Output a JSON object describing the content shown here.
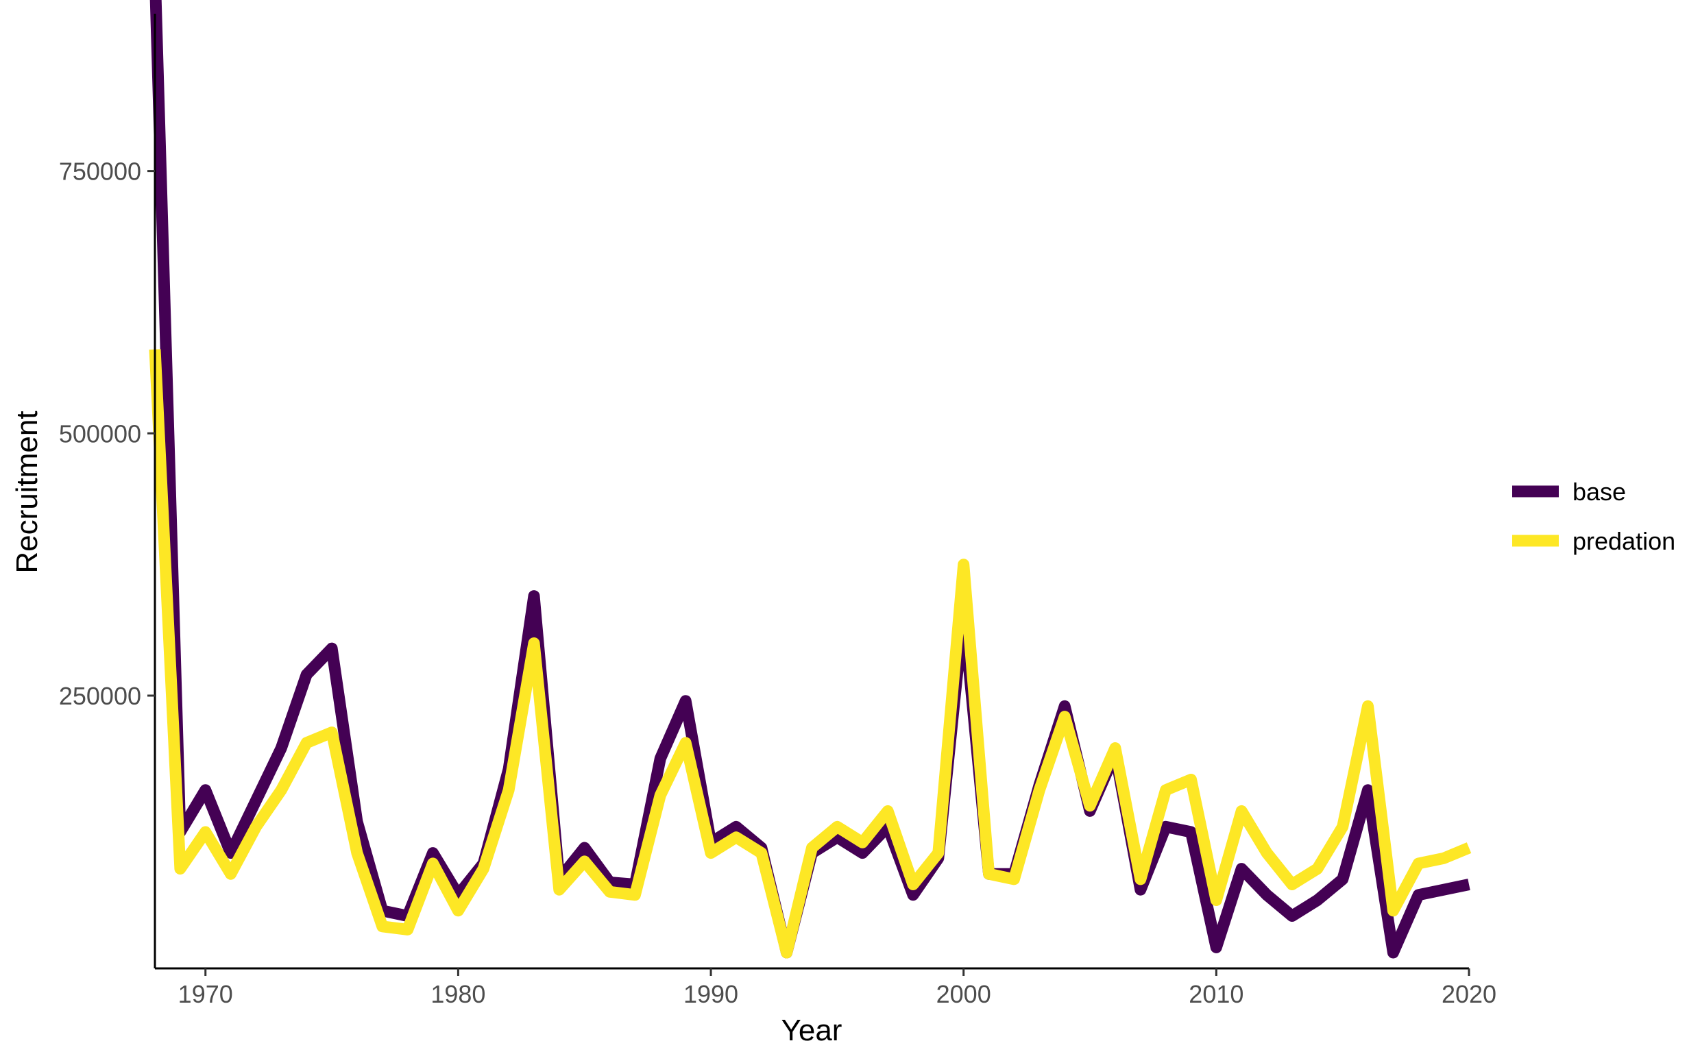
{
  "chart_data": {
    "type": "line",
    "title": "",
    "xlabel": "Year",
    "ylabel": "Recruitment",
    "xlim": [
      1968,
      2020
    ],
    "ylim": [
      -10000,
      900000
    ],
    "x_ticks": [
      1970,
      1980,
      1990,
      2000,
      2010,
      2020
    ],
    "y_ticks": [
      250000,
      500000,
      750000
    ],
    "x_tick_labels": [
      "1970",
      "1980",
      "1990",
      "2000",
      "2010",
      "2020"
    ],
    "y_tick_labels": [
      "250000",
      "500000",
      "750000"
    ],
    "grid": false,
    "legend_position": "right",
    "x": [
      1968,
      1969,
      1970,
      1971,
      1972,
      1973,
      1974,
      1975,
      1976,
      1977,
      1978,
      1979,
      1980,
      1981,
      1982,
      1983,
      1984,
      1985,
      1986,
      1987,
      1988,
      1989,
      1990,
      1991,
      1992,
      1993,
      1994,
      1995,
      1996,
      1997,
      1998,
      1999,
      2000,
      2001,
      2002,
      2003,
      2004,
      2005,
      2006,
      2007,
      2008,
      2009,
      2010,
      2011,
      2012,
      2013,
      2014,
      2015,
      2016,
      2017,
      2018,
      2019,
      2020
    ],
    "series": [
      {
        "name": "base",
        "color": "#440154",
        "values": [
          940000,
          120000,
          160000,
          100000,
          150000,
          200000,
          270000,
          295000,
          130000,
          45000,
          40000,
          100000,
          60000,
          90000,
          180000,
          345000,
          75000,
          105000,
          72000,
          70000,
          190000,
          245000,
          110000,
          125000,
          105000,
          5000,
          100000,
          115000,
          100000,
          125000,
          60000,
          95000,
          330000,
          80000,
          80000,
          165000,
          240000,
          140000,
          195000,
          65000,
          125000,
          120000,
          10000,
          85000,
          60000,
          40000,
          55000,
          75000,
          160000,
          5000,
          60000,
          65000,
          70000
        ]
      },
      {
        "name": "predation",
        "color": "#FDE725",
        "values": [
          580000,
          85000,
          120000,
          80000,
          125000,
          160000,
          205000,
          215000,
          100000,
          30000,
          27000,
          90000,
          45000,
          85000,
          160000,
          300000,
          65000,
          92000,
          63000,
          60000,
          155000,
          205000,
          100000,
          115000,
          100000,
          5000,
          105000,
          125000,
          110000,
          140000,
          70000,
          100000,
          375000,
          80000,
          75000,
          160000,
          230000,
          145000,
          200000,
          75000,
          160000,
          170000,
          55000,
          140000,
          100000,
          70000,
          85000,
          125000,
          240000,
          45000,
          90000,
          95000,
          105000
        ]
      }
    ]
  }
}
